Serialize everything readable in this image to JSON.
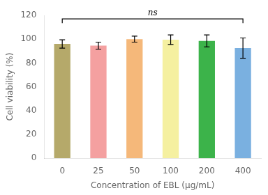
{
  "chart_data": {
    "type": "bar",
    "categories": [
      "0",
      "25",
      "50",
      "100",
      "200",
      "400"
    ],
    "values": [
      96.0,
      94.5,
      100.0,
      99.5,
      98.5,
      92.5
    ],
    "errors": [
      3.5,
      3.0,
      2.5,
      4.0,
      5.0,
      8.5
    ],
    "colors": [
      "#b5a96a",
      "#f4a0a0",
      "#f5b87a",
      "#f5f0a0",
      "#3cb34a",
      "#7ab0e0"
    ],
    "xlabel": "Concentration of EBL (μg/mL)",
    "ylabel": "Cell viability (%)",
    "ylim": [
      0,
      120
    ],
    "yticks": [
      0,
      20,
      40,
      60,
      80,
      100,
      120
    ],
    "grid": false,
    "annotations": [
      {
        "text": "ns",
        "x": [
          "0",
          "400"
        ],
        "y": 117
      }
    ]
  }
}
